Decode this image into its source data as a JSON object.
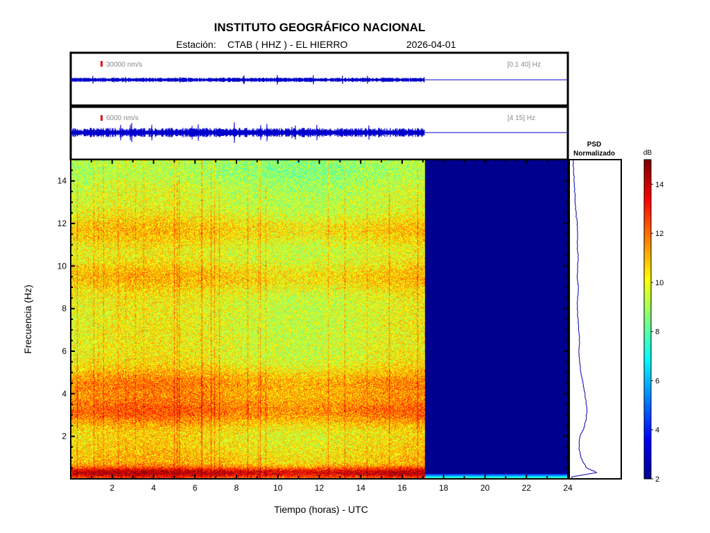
{
  "header": {
    "title": "INSTITUTO GEOGRÁFICO NACIONAL",
    "station_prefix": "Estación:",
    "station": "CTAB ( HHZ ) - EL HIERRO",
    "date": "2026-04-01"
  },
  "chart_data": [
    {
      "type": "line",
      "panel": "seismogram-broadband",
      "scale_label": "30000 nm/s",
      "filter_label": "[0.1 40] Hz",
      "data_end_hour": 17.1,
      "xlim": [
        0,
        24
      ]
    },
    {
      "type": "line",
      "panel": "seismogram-filtered",
      "scale_label": "6000 nm/s",
      "filter_label": "[4 15] Hz",
      "data_end_hour": 17.1,
      "xlim": [
        0,
        24
      ]
    },
    {
      "type": "heatmap",
      "panel": "spectrogram",
      "xlabel": "Tiempo (horas) - UTC",
      "ylabel": "Frecuencia  (Hz)",
      "xlim": [
        0,
        24
      ],
      "ylim": [
        0,
        15
      ],
      "xticks": [
        2,
        4,
        6,
        8,
        10,
        12,
        14,
        16,
        18,
        20,
        22,
        24
      ],
      "yticks": [
        2,
        4,
        6,
        8,
        10,
        12,
        14
      ],
      "data_end_hour": 17.1,
      "colormap": "jet",
      "bands_hz": [
        {
          "freq": 0.3,
          "level_db": 14
        },
        {
          "freq": 3.2,
          "level_db": 12.5
        },
        {
          "freq": 4.5,
          "level_db": 12
        },
        {
          "freq": 9.5,
          "level_db": 11.5
        },
        {
          "freq": 11.7,
          "level_db": 11.5
        },
        {
          "freq": 14.5,
          "level_db": 9.5
        }
      ]
    },
    {
      "type": "line",
      "panel": "psd",
      "title_line1": "PSD",
      "title_line2": "Normalizado",
      "freq": [
        0.1,
        0.3,
        0.5,
        0.8,
        1.0,
        1.3,
        1.6,
        2.0,
        2.4,
        2.8,
        3.2,
        3.6,
        4.0,
        4.5,
        5.0,
        5.5,
        6.0,
        6.5,
        7.0,
        7.5,
        8.0,
        8.5,
        9.0,
        9.5,
        10.0,
        10.5,
        11.0,
        11.5,
        12.0,
        12.5,
        13.0,
        13.5,
        14.0,
        14.5,
        15.0
      ],
      "psd_norm": [
        0.05,
        0.9,
        0.55,
        0.42,
        0.35,
        0.3,
        0.28,
        0.32,
        0.45,
        0.52,
        0.55,
        0.52,
        0.48,
        0.42,
        0.35,
        0.3,
        0.28,
        0.3,
        0.27,
        0.25,
        0.22,
        0.24,
        0.26,
        0.22,
        0.24,
        0.26,
        0.22,
        0.24,
        0.22,
        0.18,
        0.16,
        0.14,
        0.12,
        0.1,
        0.08
      ]
    },
    {
      "type": "heatmap",
      "panel": "colorbar",
      "label": "dB",
      "range": [
        2,
        15
      ],
      "ticks": [
        2,
        4,
        6,
        8,
        10,
        12,
        14
      ]
    }
  ]
}
